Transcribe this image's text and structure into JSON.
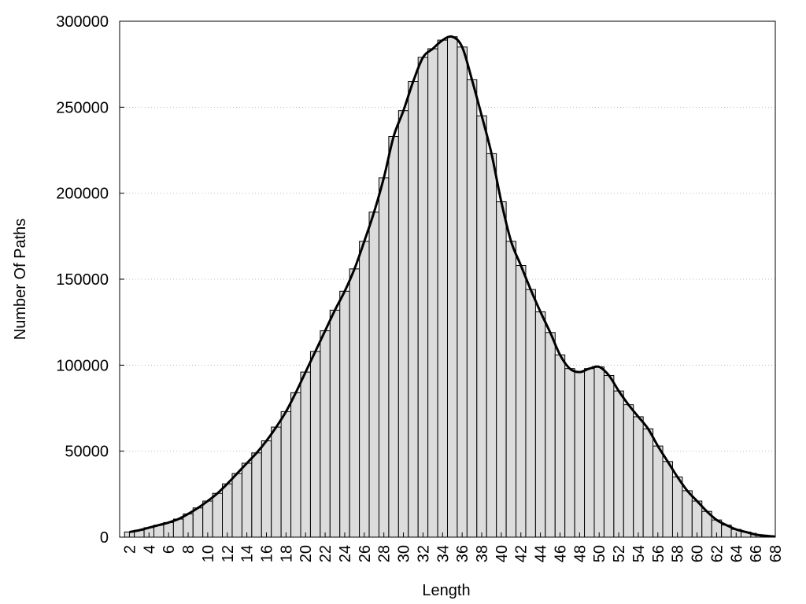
{
  "chart_data": {
    "type": "histogram-curve",
    "xlabel": "Length",
    "ylabel": "Number Of Paths",
    "x": [
      2,
      3,
      4,
      5,
      6,
      7,
      8,
      9,
      10,
      11,
      12,
      13,
      14,
      15,
      16,
      17,
      18,
      19,
      20,
      21,
      22,
      23,
      24,
      25,
      26,
      27,
      28,
      29,
      30,
      31,
      32,
      33,
      34,
      35,
      36,
      37,
      38,
      39,
      40,
      41,
      42,
      43,
      44,
      45,
      46,
      47,
      48,
      49,
      50,
      51,
      52,
      53,
      54,
      55,
      56,
      57,
      58,
      59,
      60,
      61,
      62,
      63,
      64,
      65,
      66,
      67,
      68
    ],
    "values": [
      3000,
      4000,
      5500,
      7000,
      8500,
      10500,
      13500,
      17000,
      21000,
      25500,
      31000,
      37000,
      43000,
      49000,
      56000,
      64000,
      73000,
      84000,
      96000,
      108000,
      120000,
      132000,
      143000,
      156000,
      172000,
      189000,
      209000,
      233000,
      248000,
      265000,
      279000,
      284000,
      289000,
      291000,
      285000,
      266000,
      245000,
      223000,
      195000,
      172000,
      158000,
      144000,
      131000,
      119000,
      106000,
      98000,
      96000,
      98000,
      99000,
      94000,
      85000,
      77000,
      70000,
      63000,
      53000,
      44000,
      35000,
      27000,
      21000,
      15000,
      10000,
      7000,
      4500,
      3000,
      1500,
      800,
      300
    ],
    "bar_color": "#dcdcdc",
    "line_color": "#000000",
    "xlim": [
      1,
      68
    ],
    "xticks": [
      2,
      4,
      6,
      8,
      10,
      12,
      14,
      16,
      18,
      20,
      22,
      24,
      26,
      28,
      30,
      32,
      34,
      36,
      38,
      40,
      42,
      44,
      46,
      48,
      50,
      52,
      54,
      56,
      58,
      60,
      62,
      64,
      66,
      68
    ],
    "ylim": [
      0,
      300000
    ],
    "yticks": [
      0,
      50000,
      100000,
      150000,
      200000,
      250000,
      300000
    ],
    "grid": true
  }
}
